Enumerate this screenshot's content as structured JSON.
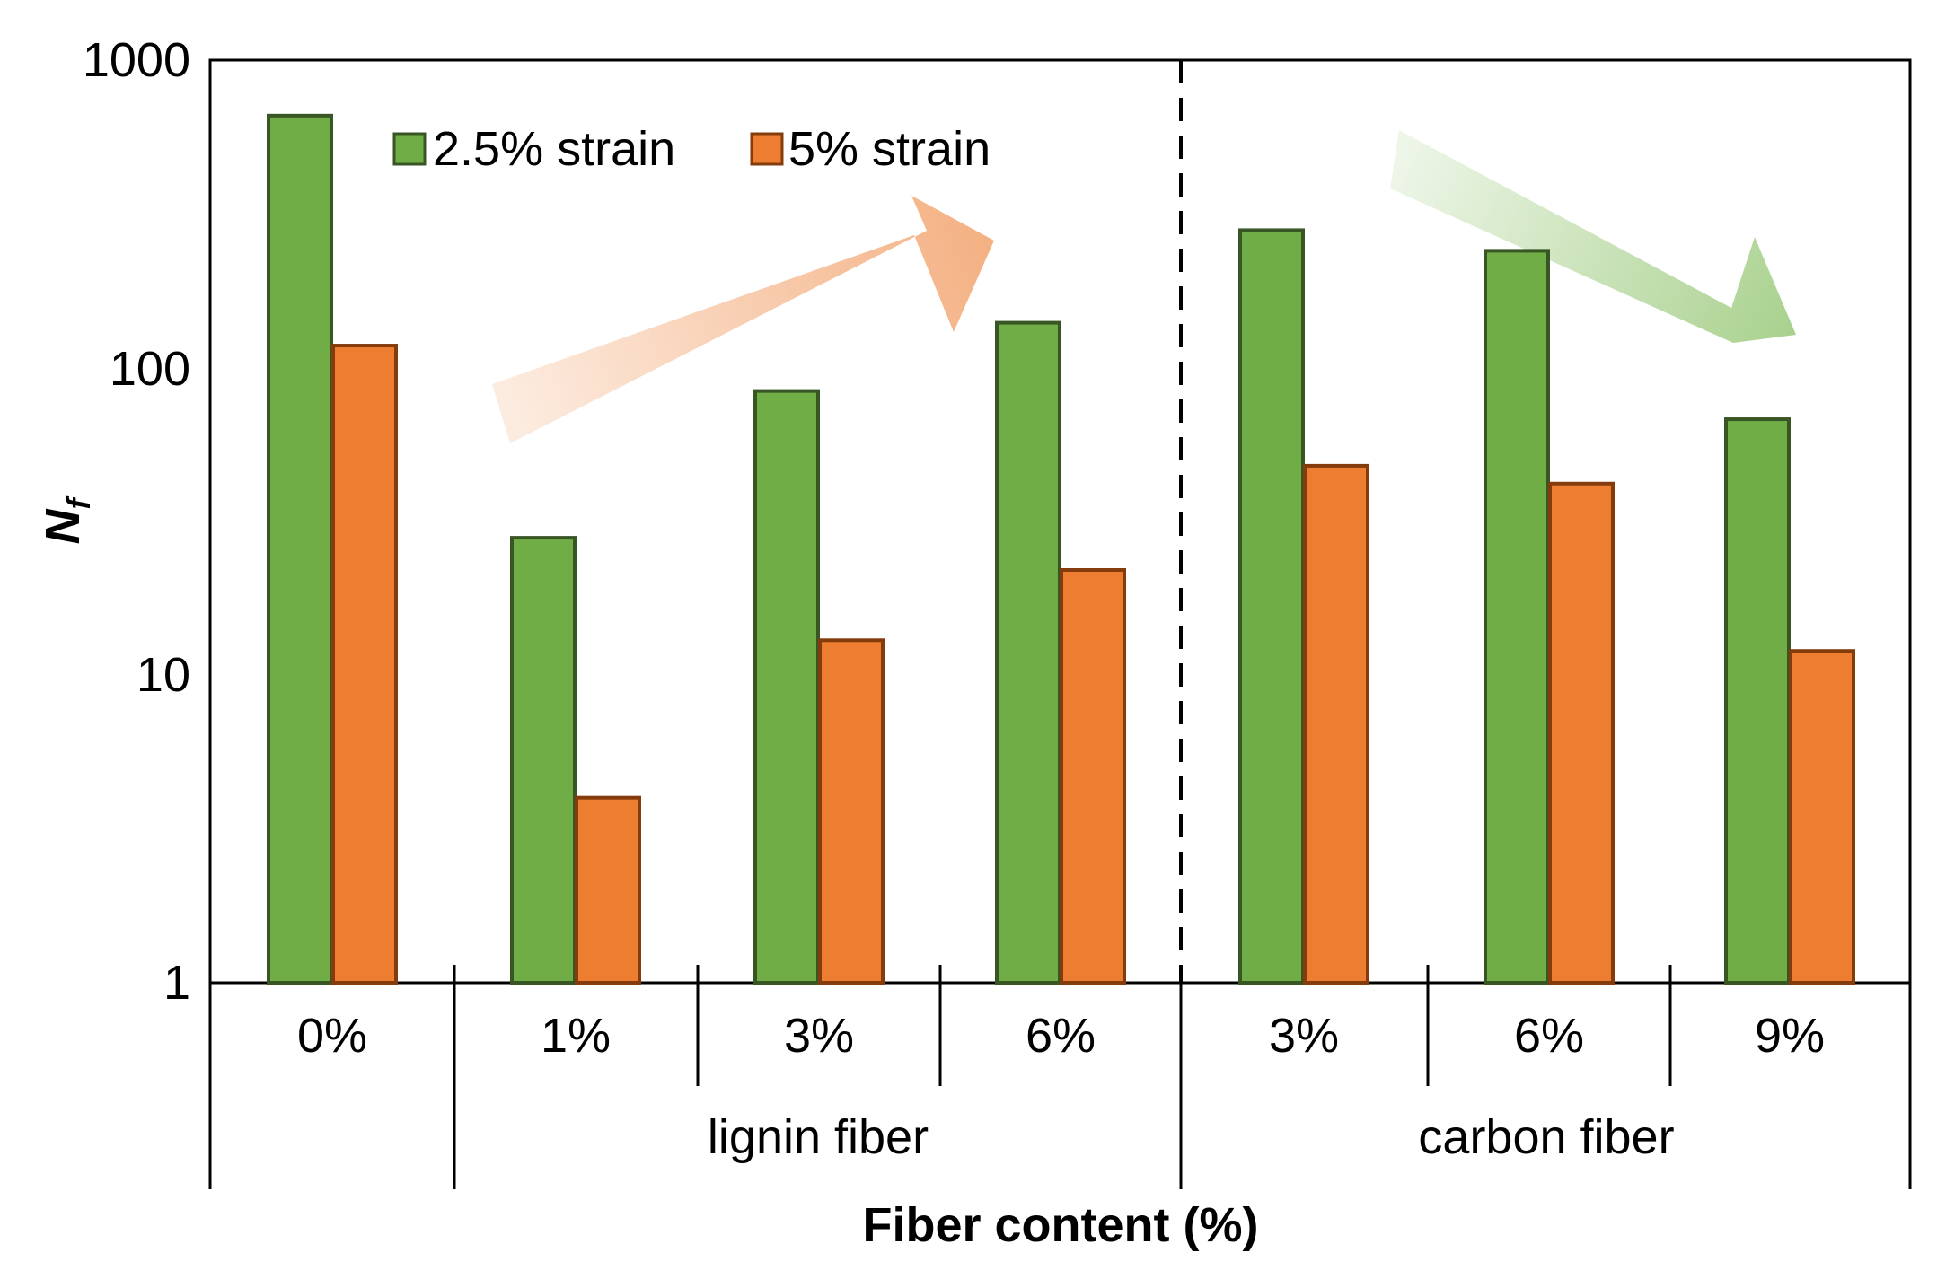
{
  "chart_data": {
    "type": "bar",
    "y_scale": "log",
    "ylim": [
      1,
      1000
    ],
    "yticks": [
      "1",
      "10",
      "100",
      "1000"
    ],
    "ylabel": "N",
    "ylabel_subscript": "f",
    "xlabel": "Fiber content (%)",
    "categories": [
      "0%",
      "1%",
      "3%",
      "6%",
      "3%",
      "6%",
      "9%"
    ],
    "groups": [
      {
        "label": "",
        "categories": [
          "0%"
        ]
      },
      {
        "label": "lignin fiber",
        "categories": [
          "1%",
          "3%",
          "6%"
        ]
      },
      {
        "label": "carbon fiber",
        "categories": [
          "3%",
          "6%",
          "9%"
        ]
      }
    ],
    "series": [
      {
        "name": "2.5% strain",
        "color": "#70ad47",
        "edge": "#375623",
        "values": [
          660,
          28,
          84,
          140,
          280,
          240,
          68
        ]
      },
      {
        "name": "5% strain",
        "color": "#ed7d31",
        "edge": "#843c0c",
        "values": [
          118,
          4,
          13,
          22,
          48,
          42,
          12
        ]
      }
    ],
    "legend_position": "top-left",
    "grid": false,
    "annotations": [
      {
        "type": "arrow",
        "color": "#f4b183",
        "direction": "increasing",
        "over": "lignin fiber"
      },
      {
        "type": "arrow",
        "color": "#a9d18e",
        "direction": "decreasing",
        "over": "carbon fiber"
      },
      {
        "type": "dashed-divider",
        "between": [
          "lignin fiber",
          "carbon fiber"
        ]
      }
    ]
  }
}
